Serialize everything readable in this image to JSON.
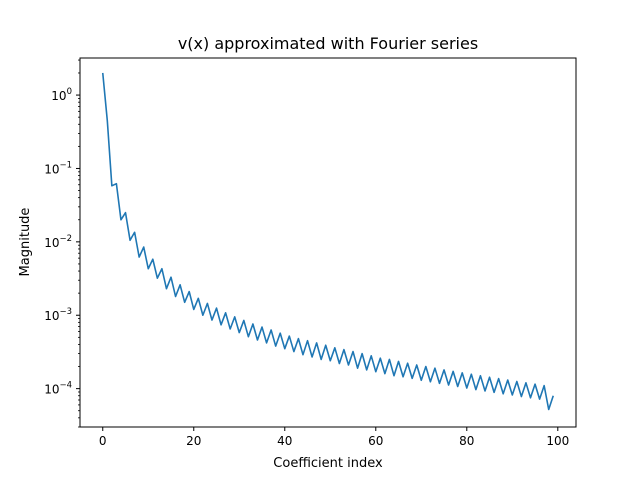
{
  "chart_data": {
    "type": "line",
    "title": "v(x) approximated with Fourier series",
    "xlabel": "Coefficient index",
    "ylabel": "Magnitude",
    "xlim": [
      -5,
      104
    ],
    "ylim": [
      3e-05,
      3.2
    ],
    "yscale": "log",
    "grid": false,
    "legend": "none",
    "xticks": [
      0,
      20,
      40,
      60,
      80,
      100
    ],
    "xtick_labels": [
      "0",
      "20",
      "40",
      "60",
      "80",
      "100"
    ],
    "yticks": [
      1,
      0.1,
      0.01,
      0.001,
      0.0001
    ],
    "ytick_labels": [
      {
        "base": "10",
        "exp": "0"
      },
      {
        "base": "10",
        "exp": "−1"
      },
      {
        "base": "10",
        "exp": "−2"
      },
      {
        "base": "10",
        "exp": "−3"
      },
      {
        "base": "10",
        "exp": "−4"
      }
    ],
    "series": [
      {
        "color": "#1f77b4",
        "x": [
          0,
          1,
          2,
          3,
          4,
          5,
          6,
          7,
          8,
          9,
          10,
          11,
          12,
          13,
          14,
          15,
          16,
          17,
          18,
          19,
          20,
          21,
          22,
          23,
          24,
          25,
          26,
          27,
          28,
          29,
          30,
          31,
          32,
          33,
          34,
          35,
          36,
          37,
          38,
          39,
          40,
          41,
          42,
          43,
          44,
          45,
          46,
          47,
          48,
          49,
          50,
          51,
          52,
          53,
          54,
          55,
          56,
          57,
          58,
          59,
          60,
          61,
          62,
          63,
          64,
          65,
          66,
          67,
          68,
          69,
          70,
          71,
          72,
          73,
          74,
          75,
          76,
          77,
          78,
          79,
          80,
          81,
          82,
          83,
          84,
          85,
          86,
          87,
          88,
          89,
          90,
          91,
          92,
          93,
          94,
          95,
          96,
          97,
          98,
          99
        ],
        "values": [
          2.0,
          0.45,
          0.058,
          0.062,
          0.02,
          0.025,
          0.0105,
          0.0135,
          0.0062,
          0.0085,
          0.0043,
          0.0058,
          0.0032,
          0.0043,
          0.0023,
          0.0033,
          0.0018,
          0.0026,
          0.0015,
          0.0021,
          0.0012,
          0.0017,
          0.001,
          0.00145,
          0.00086,
          0.00125,
          0.00074,
          0.00108,
          0.00065,
          0.00095,
          0.00058,
          0.00085,
          0.00051,
          0.00076,
          0.00046,
          0.00069,
          0.00042,
          0.00063,
          0.00038,
          0.00057,
          0.00035,
          0.00052,
          0.00032,
          0.00048,
          0.00029,
          0.00045,
          0.00027,
          0.00042,
          0.00025,
          0.00039,
          0.00024,
          0.00036,
          0.00022,
          0.00034,
          0.00021,
          0.00032,
          0.00019,
          0.0003,
          0.00018,
          0.00028,
          0.00017,
          0.00026,
          0.00016,
          0.00025,
          0.00015,
          0.000235,
          0.000145,
          0.000222,
          0.000138,
          0.00021,
          0.00013,
          0.0002,
          0.000124,
          0.00019,
          0.000118,
          0.00018,
          0.000112,
          0.000172,
          0.000107,
          0.000164,
          0.000102,
          0.000157,
          9.7e-05,
          0.00015,
          9.3e-05,
          0.000143,
          8.9e-05,
          0.000137,
          8.5e-05,
          0.000131,
          8.2e-05,
          0.000125,
          7.8e-05,
          0.00012,
          7.5e-05,
          0.000115,
          7.2e-05,
          0.00011,
          5.2e-05,
          8e-05
        ]
      }
    ]
  }
}
